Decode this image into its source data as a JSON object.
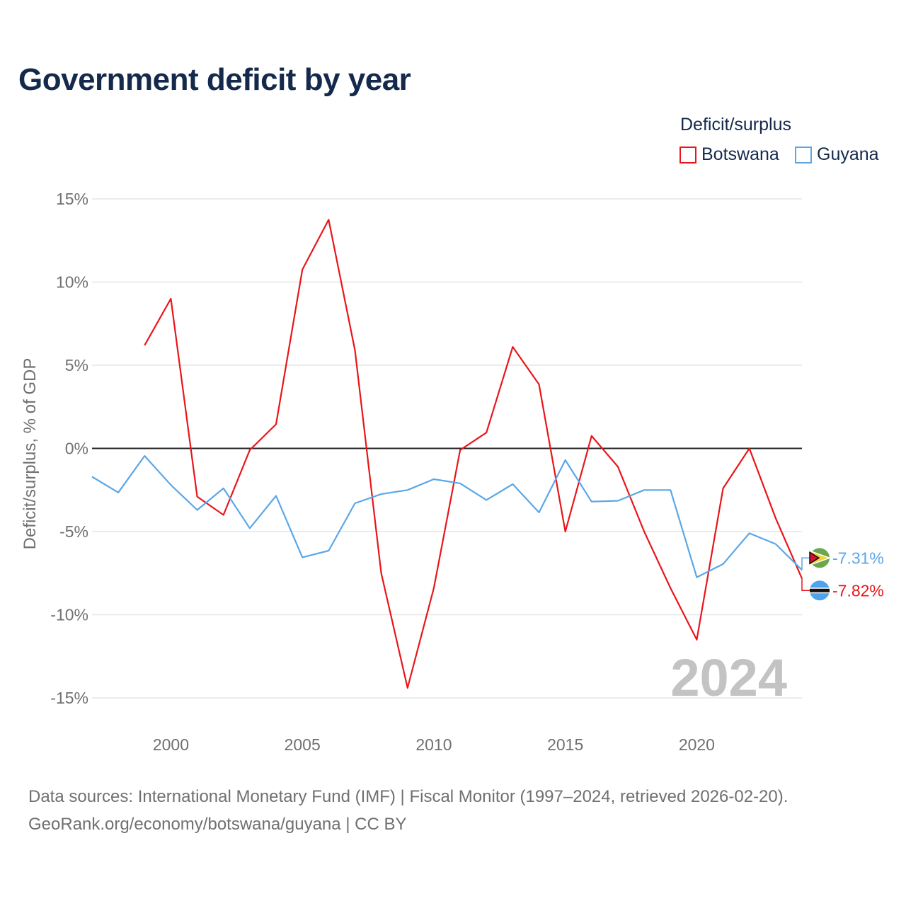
{
  "title": "Government deficit by year",
  "legend": {
    "title": "Deficit/surplus",
    "items": [
      {
        "name": "Botswana",
        "color": "#e8161b"
      },
      {
        "name": "Guyana",
        "color": "#5aa7e8"
      }
    ]
  },
  "chart_data": {
    "type": "line",
    "title": "Government deficit by year",
    "xlabel": "",
    "ylabel": "Deficit/surplus, % of GDP",
    "xlim": [
      1997,
      2024
    ],
    "ylim": [
      -17.5,
      16.5
    ],
    "x_ticks": [
      2000,
      2005,
      2010,
      2015,
      2020
    ],
    "y_ticks": [
      15,
      10,
      5,
      0,
      -5,
      -10,
      -15
    ],
    "y_tick_labels": [
      "15%",
      "10%",
      "5%",
      "0%",
      "-5%",
      "-10%",
      "-15%"
    ],
    "grid": true,
    "zero_line": true,
    "watermark_year": "2024",
    "series": [
      {
        "name": "Botswana",
        "color": "#e8161b",
        "x": [
          1999,
          2000,
          2001,
          2002,
          2003,
          2004,
          2005,
          2006,
          2007,
          2008,
          2009,
          2010,
          2011,
          2012,
          2013,
          2014,
          2015,
          2016,
          2017,
          2018,
          2019,
          2020,
          2021,
          2022,
          2023,
          2024
        ],
        "values": [
          6.2,
          9.0,
          -2.9,
          -4.0,
          -0.1,
          1.45,
          10.75,
          13.75,
          5.9,
          -7.5,
          -14.4,
          -8.4,
          -0.1,
          0.95,
          6.1,
          3.85,
          -5.0,
          0.75,
          -1.1,
          -5.0,
          -8.4,
          -11.5,
          -2.4,
          0.0,
          -4.2,
          -7.82
        ],
        "end_label": "-7.82%"
      },
      {
        "name": "Guyana",
        "color": "#5aa7e8",
        "x": [
          1997,
          1998,
          1999,
          2000,
          2001,
          2002,
          2003,
          2004,
          2005,
          2006,
          2007,
          2008,
          2009,
          2010,
          2011,
          2012,
          2013,
          2014,
          2015,
          2016,
          2017,
          2018,
          2019,
          2020,
          2021,
          2022,
          2023,
          2024
        ],
        "values": [
          -1.7,
          -2.65,
          -0.45,
          -2.2,
          -3.7,
          -2.4,
          -4.8,
          -2.85,
          -6.55,
          -6.15,
          -3.3,
          -2.75,
          -2.5,
          -1.85,
          -2.1,
          -3.1,
          -2.15,
          -3.85,
          -0.7,
          -3.2,
          -3.15,
          -2.5,
          -2.5,
          -7.75,
          -6.95,
          -5.1,
          -5.75,
          -7.31
        ],
        "end_label": "-7.31%"
      }
    ]
  },
  "footer": {
    "line1": "Data sources: International Monetary Fund (IMF) | Fiscal Monitor (1997–2024, retrieved 2026-02-20).",
    "line2": "GeoRank.org/economy/botswana/guyana | CC BY"
  }
}
